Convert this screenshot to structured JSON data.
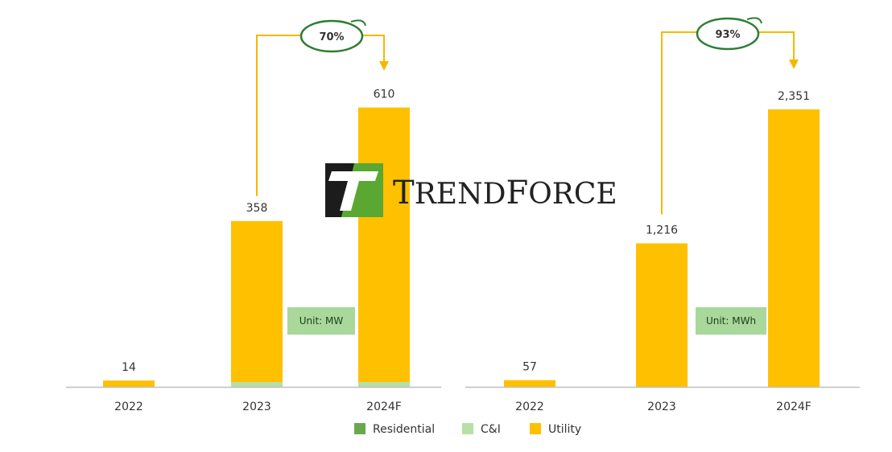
{
  "colors": {
    "residential": "#6aa84f",
    "ci": "#b7dfa6",
    "utility": "#ffc000",
    "arrow": "#f5b800",
    "oval": "#2e7d32",
    "unit_box": "#a8d89a",
    "axis": "#bfbfbf"
  },
  "watermark": {
    "text": "TrendForce"
  },
  "legend": [
    {
      "name": "Residential",
      "color": "#6aa84f"
    },
    {
      "name": "C&I",
      "color": "#b7dfa6"
    },
    {
      "name": "Utility",
      "color": "#ffc000"
    }
  ],
  "chart_data": [
    {
      "type": "bar",
      "stacked": true,
      "unit_label": "Unit: MW",
      "categories": [
        "2022",
        "2023",
        "2024F"
      ],
      "series": [
        {
          "name": "Residential",
          "values": [
            0,
            0,
            0
          ]
        },
        {
          "name": "C&I",
          "values": [
            0,
            2,
            3
          ]
        },
        {
          "name": "Utility",
          "values": [
            14,
            356,
            607
          ]
        }
      ],
      "totals": [
        14,
        358,
        610
      ],
      "total_labels": [
        "14",
        "358",
        "610"
      ],
      "growth": {
        "label": "70%",
        "from": "2023",
        "to": "2024F"
      },
      "ylim": [
        0,
        610
      ]
    },
    {
      "type": "bar",
      "stacked": true,
      "unit_label": "Unit: MWh",
      "categories": [
        "2022",
        "2023",
        "2024F"
      ],
      "series": [
        {
          "name": "Residential",
          "values": [
            0,
            0,
            0
          ]
        },
        {
          "name": "C&I",
          "values": [
            0,
            0,
            0
          ]
        },
        {
          "name": "Utility",
          "values": [
            57,
            1216,
            2351
          ]
        }
      ],
      "totals": [
        57,
        1216,
        2351
      ],
      "total_labels": [
        "57",
        "1,216",
        "2,351"
      ],
      "growth": {
        "label": "93%",
        "from": "2023",
        "to": "2024F"
      },
      "ylim": [
        0,
        2351
      ]
    }
  ]
}
